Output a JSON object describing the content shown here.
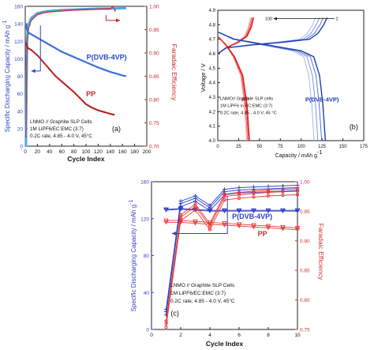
{
  "chart_data": [
    {
      "panel": "a",
      "type": "scatter",
      "panel_label": "(a)",
      "xlabel": "Cycle Index",
      "ylabel_left": "Specific Discharging Capacity / mAh g",
      "ylabel_left_sup": "-1",
      "ylabel_right": "Faradaic Efficiency",
      "xlim": [
        0,
        200
      ],
      "ylim_left": [
        0,
        160
      ],
      "ylim_right": [
        0.7,
        1.0
      ],
      "xticks": [
        "0",
        "20",
        "40",
        "60",
        "80",
        "100",
        "120",
        "140",
        "160",
        "180",
        "200"
      ],
      "yticks_left": [
        "0",
        "20",
        "40",
        "60",
        "80",
        "100",
        "120",
        "140",
        "160"
      ],
      "yticks_right": [
        "0.70",
        "0.75",
        "0.80",
        "0.85",
        "0.90",
        "0.95",
        "1.00"
      ],
      "series_labels": [
        "P(DVB-4VP)",
        "PP"
      ],
      "annotation": [
        "LNMO // Graphite SLP Cells",
        "1M LiPF6/EC:EMC (3:7)",
        "0.2C rate, 4.85 - 4.0 V, 45°C"
      ],
      "colors": {
        "pdvb": "#3b6fd8",
        "pdvb_fe": "#4aa8e8",
        "pp": "#b71c1c",
        "pp_fe": "#d32f2f"
      },
      "series": [
        {
          "name": "P(DVB-4VP)",
          "role": "capacity",
          "axis": "left",
          "x": [
            1,
            3,
            5,
            10,
            20,
            30,
            40,
            50,
            60,
            80,
            100,
            120,
            140,
            160,
            166
          ],
          "y": [
            140,
            133,
            130,
            128,
            124,
            120,
            116,
            112,
            108,
            102,
            96,
            90,
            85,
            81,
            80
          ]
        },
        {
          "name": "PP",
          "role": "capacity",
          "axis": "left",
          "x": [
            1,
            3,
            5,
            10,
            20,
            30,
            40,
            50,
            60,
            70,
            80,
            90,
            100,
            110,
            120,
            130,
            140,
            146
          ],
          "y": [
            118,
            114,
            112,
            110,
            104,
            96,
            88,
            80,
            74,
            68,
            62,
            55,
            48,
            44,
            41,
            39,
            37,
            36
          ]
        },
        {
          "name": "P(DVB-4VP)",
          "role": "faradaic-efficiency",
          "axis": "right",
          "x": [
            1,
            3,
            5,
            10,
            20,
            30,
            40,
            60,
            80,
            100,
            120,
            140,
            160,
            166
          ],
          "y": [
            0.7,
            0.93,
            0.96,
            0.975,
            0.985,
            0.988,
            0.99,
            0.992,
            0.993,
            0.994,
            0.995,
            0.995,
            0.996,
            0.996
          ]
        },
        {
          "name": "PP",
          "role": "faradaic-efficiency",
          "axis": "right",
          "x": [
            1,
            3,
            5,
            10,
            20,
            30,
            40,
            60,
            80,
            100,
            120,
            140,
            145,
            148
          ],
          "y": [
            0.72,
            0.91,
            0.95,
            0.97,
            0.982,
            0.986,
            0.988,
            0.99,
            0.992,
            0.993,
            0.994,
            0.995,
            1.0,
            0.99
          ]
        }
      ]
    },
    {
      "panel": "b",
      "type": "line",
      "panel_label": "(b)",
      "xlabel": "Capacity / mAh g",
      "xlabel_sup": "-1",
      "ylabel": "Voltage / V",
      "xlim": [
        0,
        175
      ],
      "ylim": [
        4.0,
        4.9
      ],
      "xticks": [
        "0",
        "25",
        "50",
        "75",
        "100",
        "125",
        "150",
        "175"
      ],
      "yticks": [
        "4.0",
        "4.1",
        "4.2",
        "4.3",
        "4.4",
        "4.5",
        "4.6",
        "4.7",
        "4.8",
        "4.9"
      ],
      "series_labels": [
        "PP",
        "P(DVB-4VP)"
      ],
      "cycle_labels": [
        "100",
        "2"
      ],
      "annotation": [
        "LNMO// Graphite SLP cells",
        "1M LiPF6 in EC:EMC (3:7)",
        "0.2C rate, 4.85 - 4.0 V, 45 °C"
      ],
      "colors": {
        "pdvb": "#1a3fb0",
        "pp": "#e41a1c"
      },
      "series": [
        {
          "name": "P(DVB-4VP)",
          "role": "charge",
          "x": [
            0,
            10,
            40,
            80,
            110,
            120,
            127,
            131
          ],
          "y": [
            4.6,
            4.64,
            4.66,
            4.68,
            4.7,
            4.74,
            4.8,
            4.85
          ]
        },
        {
          "name": "P(DVB-4VP)",
          "role": "discharge",
          "x": [
            0,
            20,
            60,
            100,
            115,
            122,
            126,
            129
          ],
          "y": [
            4.75,
            4.7,
            4.66,
            4.62,
            4.58,
            4.45,
            4.25,
            4.0
          ]
        },
        {
          "name": "PP",
          "role": "charge",
          "x": [
            0,
            10,
            25,
            35,
            40,
            43
          ],
          "y": [
            4.6,
            4.64,
            4.68,
            4.72,
            4.78,
            4.85
          ]
        },
        {
          "name": "PP",
          "role": "discharge",
          "x": [
            0,
            10,
            20,
            30,
            35,
            38
          ],
          "y": [
            4.72,
            4.66,
            4.58,
            4.45,
            4.25,
            4.0
          ]
        }
      ]
    },
    {
      "panel": "c",
      "type": "line",
      "panel_label": "(c)",
      "xlabel": "Cycle Index",
      "ylabel_left": "Specific Discharging Capacity / mAh g",
      "ylabel_left_sup": "-1",
      "ylabel_right": "Faradaic Efficiency",
      "xlim": [
        0,
        10
      ],
      "ylim_left": [
        0,
        160
      ],
      "ylim_right": [
        0.75,
        1.0
      ],
      "xticks": [
        "0",
        "2",
        "4",
        "6",
        "8",
        "10"
      ],
      "yticks_left": [
        "0",
        "40",
        "80",
        "120",
        "160"
      ],
      "yticks_right": [
        "0.75",
        "0.80",
        "0.85",
        "0.90",
        "0.95",
        "1.00"
      ],
      "series_labels": [
        "P(DVB-4VP)",
        "PP"
      ],
      "annotation": [
        "LNMO // Graphite SLP Cells",
        "1M LiPF6/EC:EMC (3:7)",
        "0.2C rate, 4.85 - 4.0 V, 45°C"
      ],
      "colors": {
        "pdvb": "#2f3fc8",
        "pp": "#e53935"
      },
      "series": [
        {
          "name": "P(DVB-4VP)",
          "role": "capacity",
          "axis": "left",
          "x": [
            1,
            2,
            3,
            4,
            5,
            6,
            7,
            8,
            9,
            10
          ],
          "y": [
            130,
            131,
            130,
            129,
            129,
            129,
            129,
            129,
            129,
            129
          ]
        },
        {
          "name": "PP",
          "role": "capacity",
          "axis": "left",
          "x": [
            1,
            2,
            3,
            4,
            5,
            6,
            7,
            8,
            9,
            10
          ],
          "y": [
            118,
            118,
            117,
            116,
            115,
            114,
            113,
            112,
            111,
            110
          ]
        },
        {
          "name": "P(DVB-4VP)",
          "role": "faradaic-efficiency",
          "axis": "right",
          "x": [
            1,
            2,
            3,
            4,
            5,
            6,
            7,
            8,
            9,
            10
          ],
          "y": [
            0.78,
            0.963,
            0.972,
            0.956,
            0.983,
            0.986,
            0.987,
            0.988,
            0.989,
            0.99
          ]
        },
        {
          "name": "PP",
          "role": "faradaic-efficiency",
          "axis": "right",
          "x": [
            1,
            2,
            3,
            4,
            5,
            6,
            7,
            8,
            9,
            10
          ],
          "y": [
            0.76,
            0.94,
            0.958,
            0.925,
            0.975,
            0.978,
            0.98,
            0.982,
            0.983,
            0.984
          ]
        }
      ]
    }
  ]
}
